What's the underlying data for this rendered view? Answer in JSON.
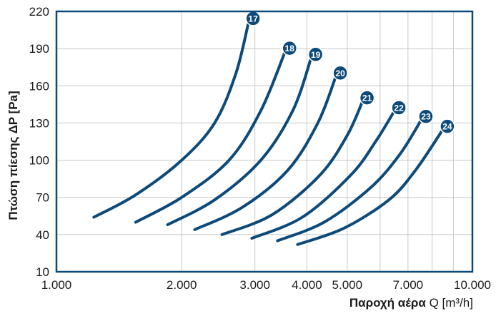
{
  "chart_data": {
    "type": "line",
    "x_scale": "log",
    "xlim": [
      1000,
      10000
    ],
    "ylim": [
      10,
      220
    ],
    "x_ticks": [
      1000,
      2000,
      3000,
      4000,
      5000,
      7000,
      10000
    ],
    "x_tick_labels": [
      "1.000",
      "2.000",
      "3.000",
      "4.000",
      "5.000",
      "7.000",
      "10.000"
    ],
    "y_ticks": [
      10,
      40,
      70,
      100,
      130,
      160,
      190,
      220
    ],
    "y_tick_labels": [
      "10",
      "40",
      "70",
      "100",
      "130",
      "160",
      "190",
      "220"
    ],
    "x_minor_grid": [
      6000,
      8000,
      9000
    ],
    "grid": true,
    "xlabel_bold": "Παροχή αέρα",
    "xlabel_rest": "Q [m³/h]",
    "ylabel": "Πτώση πίεσης ΔP [Pa]",
    "series": [
      {
        "name": "17",
        "points": [
          [
            1230,
            54
          ],
          [
            1550,
            72
          ],
          [
            2000,
            100
          ],
          [
            2400,
            130
          ],
          [
            2700,
            170
          ],
          [
            2900,
            212
          ]
        ]
      },
      {
        "name": "18",
        "points": [
          [
            1550,
            50
          ],
          [
            2000,
            70
          ],
          [
            2600,
            100
          ],
          [
            3100,
            140
          ],
          [
            3550,
            188
          ]
        ]
      },
      {
        "name": "19",
        "points": [
          [
            1850,
            48
          ],
          [
            2400,
            68
          ],
          [
            3100,
            100
          ],
          [
            3700,
            140
          ],
          [
            4100,
            183
          ]
        ]
      },
      {
        "name": "20",
        "points": [
          [
            2150,
            44
          ],
          [
            2800,
            62
          ],
          [
            3600,
            92
          ],
          [
            4250,
            130
          ],
          [
            4700,
            168
          ]
        ]
      },
      {
        "name": "21",
        "points": [
          [
            2500,
            40
          ],
          [
            3300,
            56
          ],
          [
            4300,
            88
          ],
          [
            5000,
            120
          ],
          [
            5450,
            148
          ]
        ]
      },
      {
        "name": "22",
        "points": [
          [
            2950,
            37
          ],
          [
            3900,
            54
          ],
          [
            5100,
            88
          ],
          [
            5850,
            115
          ],
          [
            6500,
            140
          ]
        ]
      },
      {
        "name": "23",
        "points": [
          [
            3400,
            35
          ],
          [
            4400,
            50
          ],
          [
            5700,
            78
          ],
          [
            6700,
            105
          ],
          [
            7550,
            133
          ]
        ]
      },
      {
        "name": "24",
        "points": [
          [
            3800,
            32
          ],
          [
            4900,
            45
          ],
          [
            6300,
            68
          ],
          [
            7300,
            92
          ],
          [
            8500,
            125
          ]
        ]
      }
    ]
  },
  "colors": {
    "line": "#0d4a7a",
    "badge": "#0d4a7a",
    "frame": "#0d4a7a",
    "grid": "#c8c8c8"
  }
}
